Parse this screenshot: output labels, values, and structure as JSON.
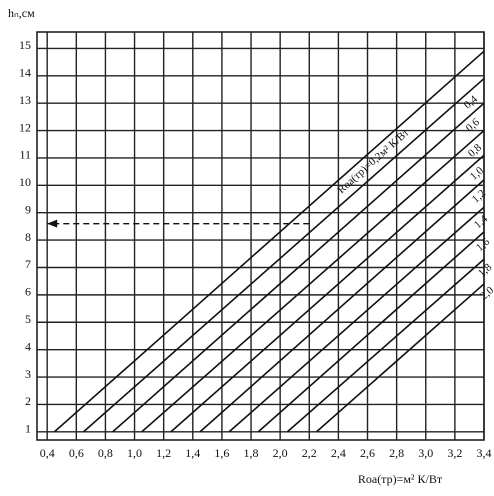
{
  "chart_data": {
    "type": "line",
    "y_label": "hₙ,см",
    "x_label": "Rоа(тр)=м² К/Вт",
    "xlim": [
      0.33,
      3.4
    ],
    "ylim": [
      0.7,
      15.6
    ],
    "xticks": [
      {
        "value": 0.4,
        "label": "0,4"
      },
      {
        "value": 0.6,
        "label": "0,6"
      },
      {
        "value": 0.8,
        "label": "0,8"
      },
      {
        "value": 1.0,
        "label": "1,0"
      },
      {
        "value": 1.2,
        "label": "1,2"
      },
      {
        "value": 1.4,
        "label": "1,4"
      },
      {
        "value": 1.6,
        "label": "1,6"
      },
      {
        "value": 1.8,
        "label": "1,8"
      },
      {
        "value": 2.0,
        "label": "2,0"
      },
      {
        "value": 2.2,
        "label": "2,2"
      },
      {
        "value": 2.4,
        "label": "2,4"
      },
      {
        "value": 2.6,
        "label": "2,6"
      },
      {
        "value": 2.8,
        "label": "2,8"
      },
      {
        "value": 3.0,
        "label": "3,0"
      },
      {
        "value": 3.2,
        "label": "3,2"
      },
      {
        "value": 3.4,
        "label": "3,4"
      }
    ],
    "yticks": [
      1,
      2,
      3,
      4,
      5,
      6,
      7,
      8,
      9,
      10,
      11,
      12,
      13,
      14,
      15
    ],
    "grid": true,
    "color": "#111111",
    "series": [
      {
        "name": "Rоа(тр)=0,2м² К/Вт",
        "x": [
          0.45,
          3.4
        ],
        "values": [
          1,
          14.9
        ]
      },
      {
        "name": "0,4",
        "x": [
          0.65,
          3.4
        ],
        "values": [
          1,
          13.9
        ]
      },
      {
        "name": "0,6",
        "x": [
          0.85,
          3.4
        ],
        "values": [
          1,
          13.0
        ]
      },
      {
        "name": "0,8",
        "x": [
          1.05,
          3.4
        ],
        "values": [
          1,
          12.0
        ]
      },
      {
        "name": "1,0",
        "x": [
          1.25,
          3.4
        ],
        "values": [
          1,
          11.1
        ]
      },
      {
        "name": "1,2",
        "x": [
          1.45,
          3.4
        ],
        "values": [
          1,
          10.2
        ]
      },
      {
        "name": "1,4",
        "x": [
          1.65,
          3.4
        ],
        "values": [
          1,
          9.2
        ]
      },
      {
        "name": "1,6",
        "x": [
          1.85,
          3.4
        ],
        "values": [
          1,
          8.3
        ]
      },
      {
        "name": "1,8",
        "x": [
          2.05,
          3.4
        ],
        "values": [
          1,
          7.3
        ]
      },
      {
        "name": "2,0",
        "x": [
          2.25,
          3.4
        ],
        "values": [
          1,
          6.4
        ]
      }
    ],
    "guide": {
      "x": [
        2.2,
        0.4
      ],
      "values": [
        8.6,
        8.6
      ]
    }
  }
}
